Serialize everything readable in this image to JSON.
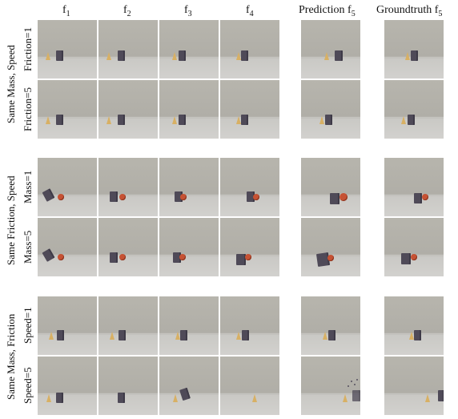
{
  "headers": {
    "f1": {
      "base": "f",
      "sub": "1"
    },
    "f2": {
      "base": "f",
      "sub": "2"
    },
    "f3": {
      "base": "f",
      "sub": "3"
    },
    "f4": {
      "base": "f",
      "sub": "4"
    },
    "prediction": {
      "base": "Prediction f",
      "sub": "5"
    },
    "groundtruth": {
      "base": "Groundtruth f",
      "sub": "5"
    }
  },
  "groups": {
    "g1": "Same Mass, Speed",
    "g2": "Same Friction, Speed",
    "g3": "Same Mass, Friction"
  },
  "rows": {
    "r1": "Friction=1",
    "r2": "Friction=5",
    "r3": "Mass=1",
    "r4": "Mass=5",
    "r5": "Speed=1",
    "r6": "Speed=5"
  },
  "colors": {
    "background": "#b3b1aa",
    "floor": "#d0cfcb",
    "cone": "#d8b064",
    "box": "#4f4a58",
    "ball": "#c65234"
  }
}
